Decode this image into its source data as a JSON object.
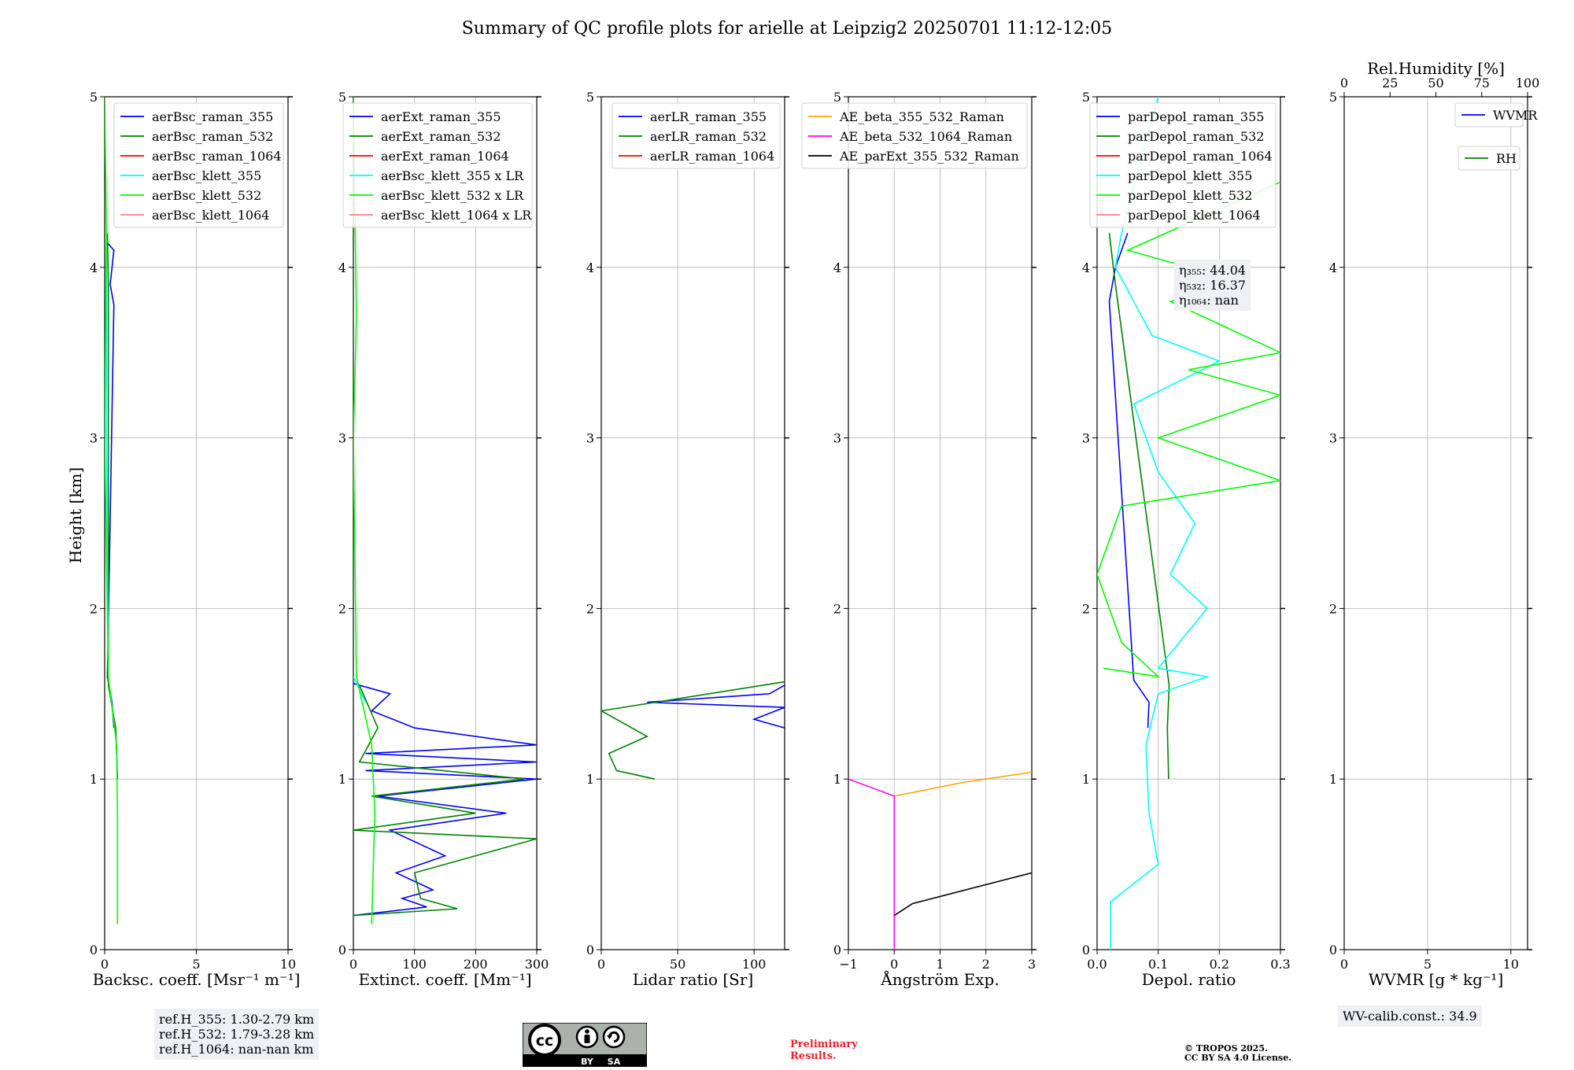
{
  "title": "Summary of QC profile plots for arielle at Leipzig2 20250701 11:12-12:05",
  "ylabel": "Height [km]",
  "y_ticks": [
    "0",
    "1",
    "2",
    "3",
    "4",
    "5"
  ],
  "chart_data": [
    {
      "type": "line",
      "panel": "backscatter",
      "xlabel": "Backsc. coeff. [Msr⁻¹ m⁻¹]",
      "xlim": [
        0,
        10
      ],
      "ylim": [
        0,
        5
      ],
      "x_ticks": [
        "0",
        "5",
        "10"
      ],
      "grid": true,
      "legend": "top-right",
      "series": [
        {
          "name": "aerBsc_raman_355",
          "color": "#0000ff",
          "points": [
            [
              0.5,
              1.3
            ],
            [
              0.4,
              1.45
            ],
            [
              0.15,
              1.6
            ],
            [
              0.5,
              3.78
            ],
            [
              0.3,
              3.9
            ],
            [
              0.5,
              4.1
            ],
            [
              0.1,
              4.15
            ]
          ]
        },
        {
          "name": "aerBsc_raman_532",
          "color": "#008000",
          "points": [
            [
              0.7,
              1.0
            ],
            [
              0.6,
              1.3
            ],
            [
              0.2,
              1.55
            ],
            [
              0.2,
              3.9
            ],
            [
              0.15,
              4.2
            ]
          ]
        },
        {
          "name": "aerBsc_raman_1064",
          "color": "#ff0000",
          "points": []
        },
        {
          "name": "aerBsc_klett_355",
          "color": "#00ffff",
          "points": [
            [
              0.2,
              1.6
            ],
            [
              0.1,
              3.0
            ],
            [
              0.1,
              4.2
            ]
          ]
        },
        {
          "name": "aerBsc_klett_532",
          "color": "#00ff00",
          "points": [
            [
              0.7,
              0.15
            ],
            [
              0.7,
              0.8
            ],
            [
              0.65,
              1.2
            ],
            [
              0.2,
              1.6
            ],
            [
              0.0,
              3.0
            ],
            [
              0.1,
              4.2
            ],
            [
              0.0,
              5.0
            ]
          ]
        },
        {
          "name": "aerBsc_klett_1064",
          "color": "#ff7f7f",
          "points": []
        }
      ]
    },
    {
      "type": "line",
      "panel": "extinction",
      "xlabel": "Extinct. coeff. [Mm⁻¹]",
      "xlim": [
        0,
        300
      ],
      "ylim": [
        0,
        5
      ],
      "x_ticks": [
        "0",
        "100",
        "200",
        "300"
      ],
      "grid": true,
      "legend": "top-right",
      "series": [
        {
          "name": "aerExt_raman_355",
          "color": "#0000ff",
          "points": [
            [
              0,
              0.2
            ],
            [
              120,
              0.25
            ],
            [
              80,
              0.3
            ],
            [
              130,
              0.35
            ],
            [
              70,
              0.45
            ],
            [
              150,
              0.55
            ],
            [
              60,
              0.7
            ],
            [
              250,
              0.8
            ],
            [
              40,
              0.9
            ],
            [
              300,
              1.0
            ],
            [
              20,
              1.05
            ],
            [
              300,
              1.1
            ],
            [
              20,
              1.15
            ],
            [
              300,
              1.2
            ],
            [
              100,
              1.3
            ],
            [
              30,
              1.4
            ],
            [
              60,
              1.5
            ],
            [
              0,
              1.56
            ]
          ]
        },
        {
          "name": "aerExt_raman_532",
          "color": "#008000",
          "points": [
            [
              0,
              0.2
            ],
            [
              170,
              0.24
            ],
            [
              110,
              0.3
            ],
            [
              100,
              0.45
            ],
            [
              300,
              0.65
            ],
            [
              0,
              0.7
            ],
            [
              200,
              0.8
            ],
            [
              30,
              0.9
            ],
            [
              280,
              1.0
            ],
            [
              10,
              1.1
            ],
            [
              40,
              1.3
            ],
            [
              10,
              1.55
            ]
          ]
        },
        {
          "name": "aerExt_raman_1064",
          "color": "#ff0000",
          "points": []
        },
        {
          "name": "aerBsc_klett_355 x LR",
          "color": "#00ffff",
          "points": [
            [
              20,
              1.45
            ],
            [
              0,
              1.6
            ]
          ]
        },
        {
          "name": "aerBsc_klett_532 x LR",
          "color": "#00ff00",
          "points": [
            [
              30,
              0.15
            ],
            [
              35,
              0.8
            ],
            [
              30,
              1.2
            ],
            [
              5,
              1.6
            ],
            [
              0,
              3.0
            ],
            [
              5,
              3.7
            ],
            [
              0,
              5.0
            ]
          ]
        },
        {
          "name": "aerBsc_klett_1064 x LR",
          "color": "#ff7f7f",
          "points": []
        }
      ]
    },
    {
      "type": "line",
      "panel": "lidar-ratio",
      "xlabel": "Lidar ratio [Sr]",
      "xlim": [
        0,
        120
      ],
      "ylim": [
        0,
        5
      ],
      "x_ticks": [
        "0",
        "50",
        "100"
      ],
      "grid": true,
      "legend": "top-right",
      "series": [
        {
          "name": "aerLR_raman_355",
          "color": "#0000ff",
          "points": [
            [
              120,
              1.3
            ],
            [
              100,
              1.35
            ],
            [
              120,
              1.42
            ],
            [
              30,
              1.45
            ],
            [
              110,
              1.5
            ],
            [
              120,
              1.55
            ]
          ]
        },
        {
          "name": "aerLR_raman_532",
          "color": "#008000",
          "points": [
            [
              35,
              1.0
            ],
            [
              10,
              1.05
            ],
            [
              5,
              1.15
            ],
            [
              30,
              1.25
            ],
            [
              20,
              1.3
            ],
            [
              0,
              1.4
            ],
            [
              120,
              1.57
            ]
          ]
        },
        {
          "name": "aerLR_raman_1064",
          "color": "#ff0000",
          "points": []
        }
      ]
    },
    {
      "type": "line",
      "panel": "angstrom",
      "xlabel": "Ångström Exp.",
      "xlim": [
        -1,
        3
      ],
      "ylim": [
        0,
        5
      ],
      "x_ticks": [
        "−1",
        "0",
        "1",
        "2",
        "3"
      ],
      "grid": true,
      "legend": "top-right",
      "series": [
        {
          "name": "AE_beta_355_532_Raman",
          "color": "#ffa500",
          "points": [
            [
              0,
              0.9
            ],
            [
              1.5,
              0.98
            ],
            [
              3,
              1.04
            ]
          ]
        },
        {
          "name": "AE_beta_532_1064_Raman",
          "color": "#ff00ff",
          "points": [
            [
              -1,
              1.0
            ],
            [
              0,
              0.9
            ],
            [
              0,
              0.0
            ]
          ]
        },
        {
          "name": "AE_parExt_355_532_Raman",
          "color": "#000000",
          "points": [
            [
              0,
              0.2
            ],
            [
              0.4,
              0.27
            ],
            [
              3,
              0.45
            ]
          ]
        }
      ]
    },
    {
      "type": "line",
      "panel": "depol",
      "xlabel": "Depol. ratio",
      "xlim": [
        0,
        0.3
      ],
      "ylim": [
        0,
        5
      ],
      "x_ticks": [
        "0.0",
        "0.1",
        "0.2",
        "0.3"
      ],
      "grid": true,
      "legend": "top-right",
      "series": [
        {
          "name": "parDepol_raman_355",
          "color": "#0000ff",
          "points": [
            [
              0.083,
              1.3
            ],
            [
              0.085,
              1.45
            ],
            [
              0.06,
              1.58
            ],
            [
              0.02,
              3.8
            ],
            [
              0.03,
              4.0
            ],
            [
              0.05,
              4.2
            ]
          ]
        },
        {
          "name": "parDepol_raman_532",
          "color": "#008000",
          "points": [
            [
              0.117,
              1.0
            ],
            [
              0.115,
              1.3
            ],
            [
              0.118,
              1.55
            ],
            [
              0.03,
              3.9
            ],
            [
              0.02,
              4.2
            ]
          ]
        },
        {
          "name": "parDepol_raman_1064",
          "color": "#ff0000",
          "points": []
        },
        {
          "name": "parDepol_klett_355",
          "color": "#00ffff",
          "points": [
            [
              0.022,
              0.0
            ],
            [
              0.022,
              0.28
            ],
            [
              0.1,
              0.5
            ],
            [
              0.085,
              0.8
            ],
            [
              0.08,
              1.2
            ],
            [
              0.1,
              1.5
            ],
            [
              0.18,
              1.6
            ],
            [
              0.1,
              1.65
            ],
            [
              0.18,
              2.0
            ],
            [
              0.12,
              2.2
            ],
            [
              0.16,
              2.5
            ],
            [
              0.1,
              2.8
            ],
            [
              0.06,
              3.2
            ],
            [
              0.2,
              3.45
            ],
            [
              0.09,
              3.6
            ],
            [
              0.03,
              4.0
            ],
            [
              0.04,
              4.2
            ],
            [
              0.1,
              5.0
            ]
          ]
        },
        {
          "name": "parDepol_klett_532",
          "color": "#00ff00",
          "points": [
            [
              0.01,
              1.65
            ],
            [
              0.1,
              1.6
            ],
            [
              0.04,
              1.8
            ],
            [
              0.0,
              2.2
            ],
            [
              0.04,
              2.6
            ],
            [
              0.3,
              2.75
            ],
            [
              0.1,
              3.0
            ],
            [
              0.3,
              3.25
            ],
            [
              0.15,
              3.4
            ],
            [
              0.3,
              3.5
            ],
            [
              0.12,
              3.8
            ],
            [
              0.25,
              3.9
            ],
            [
              0.05,
              4.1
            ],
            [
              0.3,
              4.5
            ]
          ]
        },
        {
          "name": "parDepol_klett_1064",
          "color": "#ff7f7f",
          "points": []
        }
      ]
    },
    {
      "type": "line",
      "panel": "wvmr",
      "xlabel": "WVMR [g * kg⁻¹]",
      "xlim": [
        0,
        11
      ],
      "ylim": [
        0,
        5
      ],
      "x_ticks": [
        "0",
        "5",
        "10"
      ],
      "grid": true,
      "legend": "top-right",
      "top_axis": {
        "label": "Rel.Humidity [%]",
        "ticks": [
          "0",
          "25",
          "50",
          "75",
          "100"
        ],
        "xlim": [
          0,
          100
        ]
      },
      "series": [
        {
          "name": "WVMR",
          "color": "#0000ff",
          "points": []
        },
        {
          "name": "RH",
          "color": "#008000",
          "points": []
        }
      ]
    }
  ],
  "eta_box": {
    "eta355": "η₃₅₅: 44.04",
    "eta532": "η₅₃₂: 16.37",
    "eta1064": "η₁₀₆₄: nan"
  },
  "refh_box": {
    "l1": "ref.H_355: 1.30-2.79 km",
    "l2": "ref.H_532: 1.79-3.28 km",
    "l3": "ref.H_1064: nan-nan km"
  },
  "wv_box": "WV-calib.const.: 34.9",
  "preliminary": {
    "l1": "Preliminary",
    "l2": "Results."
  },
  "copyright": {
    "l1": "© TROPOS 2025.",
    "l2": "CC BY SA 4.0 License."
  },
  "cc_badge": {
    "cc": "cc",
    "by": "BY",
    "sa": "SA"
  }
}
